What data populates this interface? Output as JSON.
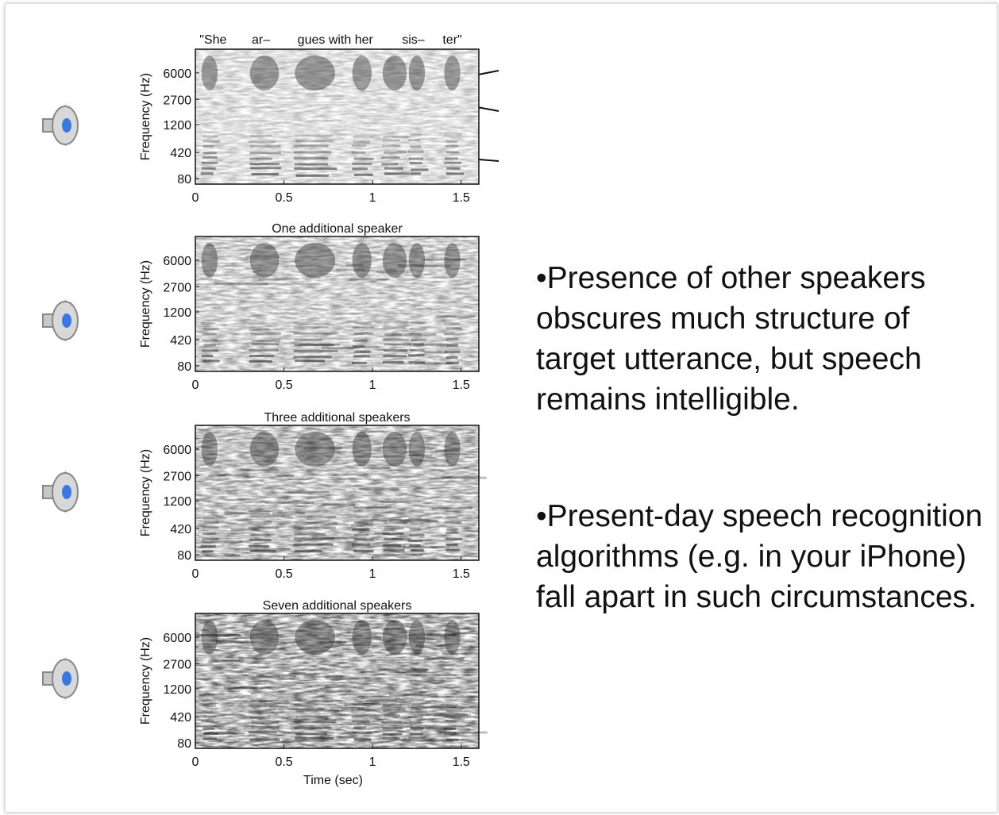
{
  "figure": {
    "panels": [
      {
        "words": [
          "\"She",
          "ar–",
          "gues with her",
          "sis–",
          "ter\""
        ]
      },
      {
        "title": "One additional speaker"
      },
      {
        "title": "Three additional speakers"
      },
      {
        "title": "Seven additional speakers"
      }
    ],
    "y_label": "Frequency (Hz)",
    "x_label": "Time (sec)",
    "yscale": "erb",
    "ylim": [
      35,
      12000
    ],
    "yticks": [
      80,
      420,
      1200,
      2700,
      6000
    ],
    "xlim": [
      0,
      1.6
    ],
    "xticks": [
      0,
      0.5,
      1,
      1.5
    ]
  },
  "bullets": [
    "•Presence of other speakers obscures much structure of target utterance, but speech remains intelligible.",
    "•Present-day speech recognition algorithms (e.g. in your iPhone) fall apart in such circumstances."
  ]
}
